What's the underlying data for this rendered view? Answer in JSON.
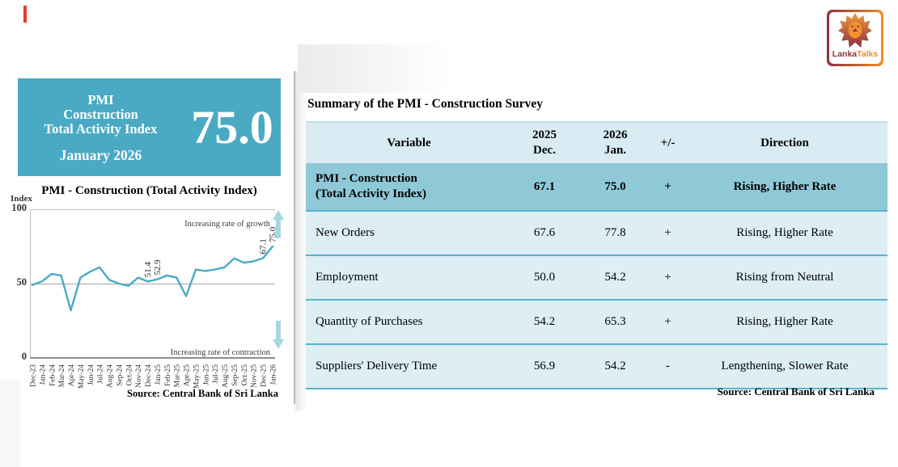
{
  "headline": {
    "line1": "PMI",
    "line2": "Construction",
    "line3": "Total Activity Index",
    "period": "January 2026",
    "value": "75.0"
  },
  "chart_data": {
    "type": "line",
    "title": "PMI - Construction (Total Activity Index)",
    "ylabel": "Index",
    "yticks": [
      "100",
      "50",
      "0"
    ],
    "ylim": [
      0,
      100
    ],
    "grid": "horizontal lines at 50 and 100",
    "line_color": "#4aaac4",
    "x": [
      "Dec-23",
      "Jan-24",
      "Feb-24",
      "Mar-24",
      "Apr-24",
      "May-24",
      "Jun-24",
      "Jul-24",
      "Aug-24",
      "Sep-24",
      "Oct-24",
      "Nov-24",
      "Dec-24",
      "Jan-25",
      "Feb-25",
      "Mar-25",
      "Apr-25",
      "May-25",
      "Jun-25",
      "Jul-25",
      "Aug-25",
      "Sep-25",
      "Oct-25",
      "Nov-25",
      "Dec-25",
      "Jan-26"
    ],
    "values": [
      49,
      51.5,
      56.5,
      55.5,
      32,
      54,
      58,
      61,
      52.5,
      50,
      48.5,
      54,
      51.4,
      52.9,
      55.5,
      54,
      41.5,
      59.5,
      58.5,
      59.5,
      61,
      67,
      64,
      65,
      67.1,
      75.0
    ],
    "annotations": [
      {
        "x": "Dec-24",
        "label": "51.4"
      },
      {
        "x": "Jan-25",
        "label": "52.9"
      },
      {
        "x": "Dec-25",
        "label": "67.1"
      },
      {
        "x": "Jan-26",
        "label": "75.0"
      }
    ],
    "growth_label": "Increasing rate of growth",
    "contraction_label": "Increasing rate of contraction",
    "source": "Source: Central Bank of Sri Lanka"
  },
  "summary": {
    "title": "Summary of the PMI - Construction Survey",
    "columns": [
      "Variable",
      "2025\nDec.",
      "2026\nJan.",
      "+/-",
      "Direction"
    ],
    "rows": [
      {
        "variable": "PMI - Construction\n(Total Activity Index)",
        "dec": "67.1",
        "jan": "75.0",
        "sign": "+",
        "direction": "Rising, Higher Rate",
        "highlight": true
      },
      {
        "variable": "New Orders",
        "dec": "67.6",
        "jan": "77.8",
        "sign": "+",
        "direction": "Rising, Higher Rate",
        "highlight": false
      },
      {
        "variable": "Employment",
        "dec": "50.0",
        "jan": "54.2",
        "sign": "+",
        "direction": "Rising from Neutral",
        "highlight": false
      },
      {
        "variable": "Quantity of Purchases",
        "dec": "54.2",
        "jan": "65.3",
        "sign": "+",
        "direction": "Rising, Higher Rate",
        "highlight": false
      },
      {
        "variable": "Suppliers' Delivery Time",
        "dec": "56.9",
        "jan": "54.2",
        "sign": "-",
        "direction": "Lengthening, Slower Rate",
        "highlight": false
      }
    ],
    "source": "Source: Central Bank of Sri Lanka"
  },
  "logo": {
    "lanka": "Lanka",
    "talks": "Talks"
  },
  "colors": {
    "teal_box": "#4aaac4",
    "table_header_bg": "#d9ecf3",
    "table_highlight_bg": "#8fc9d8",
    "table_row_bg": "#ddeef5",
    "table_line": "#56b3cc",
    "arrow": "#a5d7e3",
    "logo_maroon": "#8f3040",
    "logo_orange": "#ef8c28"
  }
}
